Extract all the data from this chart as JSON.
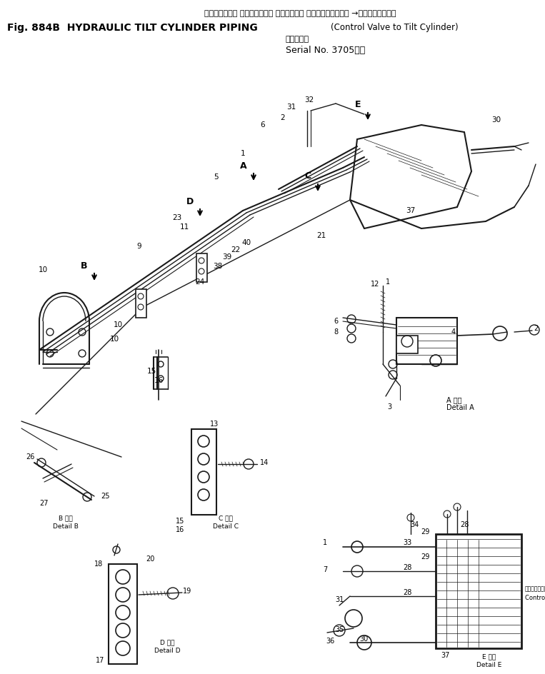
{
  "bg_color": "#ffffff",
  "fig_width": 7.63,
  "fig_height": 9.44,
  "dpi": 100,
  "title_jp": "ハイドロリック チルトシリンダ パイピング（ コントロールバルブ →チルトシリンダ）",
  "title_en1": "Fig. 884B  HYDRAULIC TILT CYLINDER PIPING",
  "title_en2": "(Control Valve to Tilt Cylinder)",
  "title_serial_jp": "（適用号機",
  "title_serial_en": "Serial No. 3705～）",
  "lc": "#1a1a1a"
}
